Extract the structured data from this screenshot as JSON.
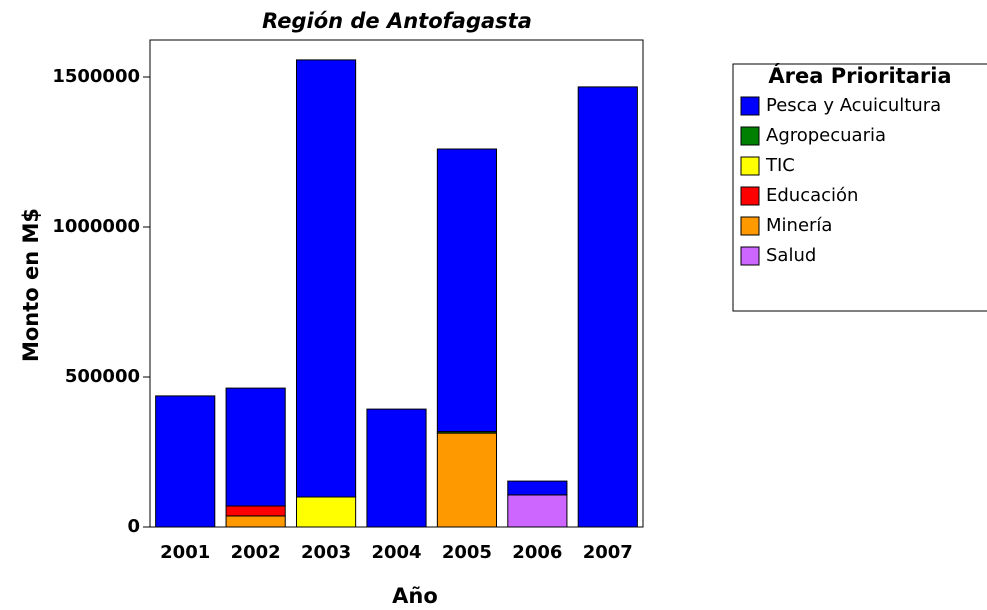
{
  "chart_data": {
    "type": "stacked-bar",
    "title": "Región de Antofagasta",
    "x_label": "Año",
    "y_label": "Monto en M$",
    "categories": [
      "2001",
      "2002",
      "2003",
      "2004",
      "2005",
      "2006",
      "2007"
    ],
    "legend_title": "Área Prioritaria",
    "legend_position": "right",
    "series": [
      {
        "name": "Pesca y Acuicultura",
        "color": "#0000ff",
        "values": [
          437000,
          393000,
          1457000,
          393000,
          942000,
          46000,
          1467000
        ]
      },
      {
        "name": "Agropecuaria",
        "color": "#008000",
        "values": [
          0,
          0,
          0,
          0,
          5000,
          0,
          0
        ]
      },
      {
        "name": "TIC",
        "color": "#ffff00",
        "values": [
          0,
          0,
          100000,
          0,
          0,
          0,
          0
        ]
      },
      {
        "name": "Educación",
        "color": "#ff0000",
        "values": [
          0,
          33000,
          0,
          0,
          0,
          0,
          0
        ]
      },
      {
        "name": "Minería",
        "color": "#ff9900",
        "values": [
          0,
          37000,
          0,
          0,
          313000,
          0,
          0
        ]
      },
      {
        "name": "Salud",
        "color": "#cc66ff",
        "values": [
          0,
          0,
          0,
          0,
          0,
          107000,
          0
        ]
      }
    ],
    "ylim": [
      0,
      1623333
    ],
    "yticks": [
      0,
      500000,
      1000000,
      1500000
    ],
    "grid": false
  }
}
